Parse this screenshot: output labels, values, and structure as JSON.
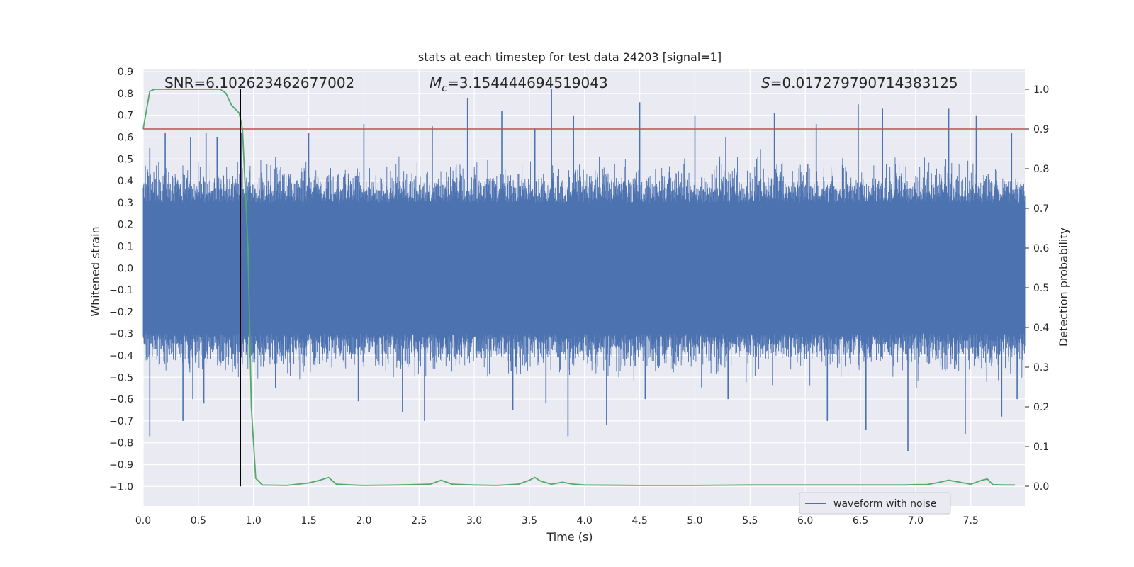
{
  "chart_data": {
    "type": "line",
    "title": "stats at each timestep for test data 24203 [signal=1]",
    "xlabel": "Time (s)",
    "ylabel": "Whitened strain",
    "y2label": "Detection probability",
    "xlim": [
      0.0,
      7.99
    ],
    "ylim": [
      -1.09,
      0.91
    ],
    "y2lim": [
      -0.05,
      1.05
    ],
    "x_ticks": [
      0.0,
      0.5,
      1.0,
      1.5,
      2.0,
      2.5,
      3.0,
      3.5,
      4.0,
      4.5,
      5.0,
      5.5,
      6.0,
      6.5,
      7.0,
      7.5
    ],
    "x_tick_labels": [
      "0.0",
      "0.5",
      "1.0",
      "1.5",
      "2.0",
      "2.5",
      "3.0",
      "3.5",
      "4.0",
      "4.5",
      "5.0",
      "5.5",
      "6.0",
      "6.5",
      "7.0",
      "7.5"
    ],
    "y_ticks": [
      0.9,
      0.8,
      0.7,
      0.6,
      0.5,
      0.4,
      0.3,
      0.2,
      0.1,
      0.0,
      -0.1,
      -0.2,
      -0.3,
      -0.4,
      -0.5,
      -0.6,
      -0.7,
      -0.8,
      -0.9,
      -1.0
    ],
    "y_tick_labels": [
      "0.9",
      "0.8",
      "0.7",
      "0.6",
      "0.5",
      "0.4",
      "0.3",
      "0.2",
      "0.1",
      "0.0",
      "−0.1",
      "−0.2",
      "−0.3",
      "−0.4",
      "−0.5",
      "−0.6",
      "−0.7",
      "−0.8",
      "−0.9",
      "−1.0"
    ],
    "y2_ticks": [
      1.0,
      0.9,
      0.8,
      0.7,
      0.6,
      0.5,
      0.4,
      0.3,
      0.2,
      0.1,
      0.0
    ],
    "y2_tick_labels": [
      "1.0",
      "0.9",
      "0.8",
      "0.7",
      "0.6",
      "0.5",
      "0.4",
      "0.3",
      "0.2",
      "0.1",
      "0.0"
    ],
    "annotations": {
      "snr": "SNR=6.102623462677002",
      "mc_symbol": "M",
      "mc_sub": "c",
      "mc_value": "=3.154444694519043",
      "s_symbol": "S",
      "s_value": "=0.017279790714383125"
    },
    "threshold": 0.9,
    "marker_time": 0.88,
    "legend": {
      "label": "waveform with noise",
      "loc": "lower-right"
    },
    "colors": {
      "waveform": "#4c72b0",
      "probability": "#55a868",
      "threshold": "#c44e52",
      "marker": "#000000",
      "background": "#eaeaf2",
      "grid": "#ffffff"
    },
    "series": [
      {
        "name": "waveform with noise",
        "axis": "left",
        "type": "noise-envelope",
        "x_range": [
          0.0,
          7.99
        ],
        "core_range": [
          -0.3,
          0.3
        ],
        "typical_peak_range": [
          -0.5,
          0.6
        ],
        "peaks_up": [
          [
            0.06,
            0.55
          ],
          [
            0.2,
            0.62
          ],
          [
            0.43,
            0.6
          ],
          [
            0.57,
            0.62
          ],
          [
            0.67,
            0.6
          ],
          [
            0.89,
            0.62
          ],
          [
            1.5,
            0.62
          ],
          [
            2.0,
            0.66
          ],
          [
            2.62,
            0.65
          ],
          [
            2.94,
            0.78
          ],
          [
            3.25,
            0.72
          ],
          [
            3.55,
            0.64
          ],
          [
            3.7,
            0.82
          ],
          [
            3.9,
            0.7
          ],
          [
            4.5,
            0.76
          ],
          [
            5.0,
            0.7
          ],
          [
            5.28,
            0.6
          ],
          [
            5.72,
            0.71
          ],
          [
            6.1,
            0.66
          ],
          [
            6.48,
            0.75
          ],
          [
            6.7,
            0.73
          ],
          [
            7.3,
            0.73
          ],
          [
            7.55,
            0.7
          ],
          [
            7.87,
            0.62
          ]
        ],
        "peaks_down": [
          [
            0.06,
            -0.77
          ],
          [
            0.36,
            -0.7
          ],
          [
            0.45,
            -0.6
          ],
          [
            0.55,
            -0.62
          ],
          [
            1.2,
            -0.55
          ],
          [
            1.95,
            -0.61
          ],
          [
            2.35,
            -0.66
          ],
          [
            2.55,
            -0.7
          ],
          [
            3.35,
            -0.65
          ],
          [
            3.65,
            -0.62
          ],
          [
            3.85,
            -0.77
          ],
          [
            4.2,
            -0.72
          ],
          [
            4.55,
            -0.6
          ],
          [
            5.3,
            -0.6
          ],
          [
            6.2,
            -0.7
          ],
          [
            6.55,
            -0.74
          ],
          [
            6.93,
            -0.84
          ],
          [
            7.45,
            -0.76
          ],
          [
            7.78,
            -0.68
          ],
          [
            7.92,
            -0.6
          ]
        ]
      },
      {
        "name": "Detection probability",
        "axis": "right",
        "x": [
          0.0,
          0.06,
          0.1,
          0.2,
          0.35,
          0.5,
          0.62,
          0.7,
          0.75,
          0.8,
          0.87,
          0.9,
          0.95,
          0.98,
          1.02,
          1.08,
          1.3,
          1.5,
          1.6,
          1.68,
          1.75,
          1.9,
          2.0,
          2.3,
          2.6,
          2.7,
          2.8,
          3.0,
          3.2,
          3.4,
          3.5,
          3.55,
          3.6,
          3.7,
          3.8,
          3.9,
          4.0,
          4.5,
          5.0,
          5.5,
          6.0,
          6.5,
          6.9,
          7.0,
          7.1,
          7.2,
          7.3,
          7.4,
          7.5,
          7.6,
          7.65,
          7.7,
          7.8,
          7.9
        ],
        "values": [
          0.9,
          0.995,
          1.0,
          1.0,
          1.0,
          1.0,
          1.0,
          1.0,
          0.99,
          0.96,
          0.94,
          0.9,
          0.6,
          0.2,
          0.02,
          0.003,
          0.002,
          0.008,
          0.015,
          0.022,
          0.005,
          0.003,
          0.002,
          0.003,
          0.005,
          0.015,
          0.005,
          0.003,
          0.002,
          0.005,
          0.015,
          0.022,
          0.013,
          0.005,
          0.01,
          0.005,
          0.003,
          0.002,
          0.002,
          0.003,
          0.003,
          0.003,
          0.003,
          0.004,
          0.004,
          0.009,
          0.015,
          0.01,
          0.005,
          0.015,
          0.018,
          0.004,
          0.003,
          0.003
        ]
      }
    ]
  }
}
